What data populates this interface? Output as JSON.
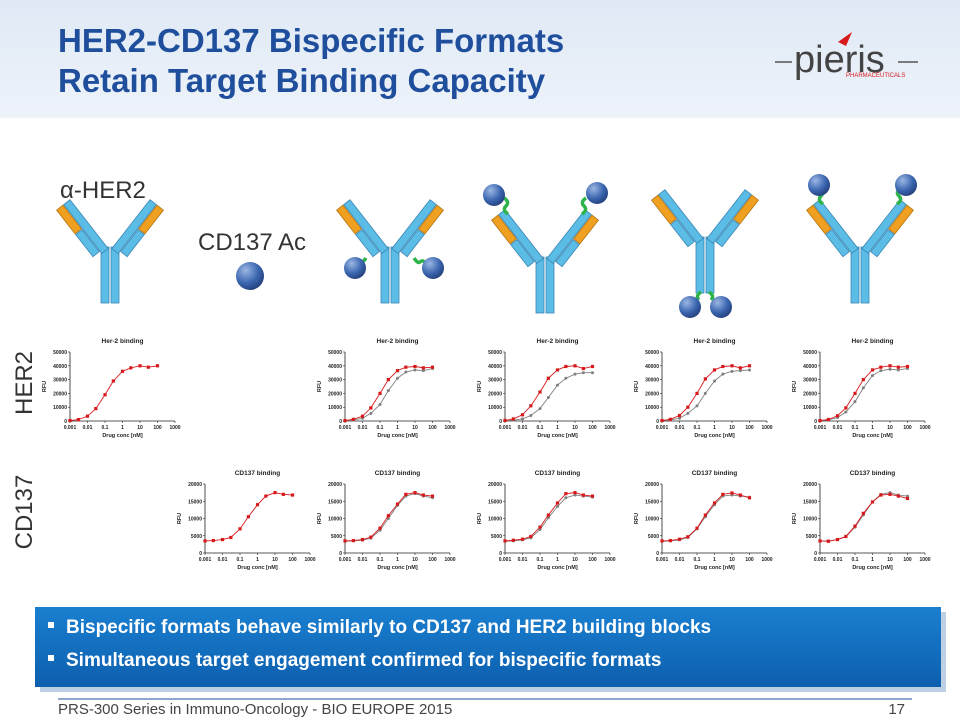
{
  "header": {
    "title_lines": [
      "HER2-CD137 Bispecific Formats",
      "Retain Target Binding Capacity"
    ],
    "logo": {
      "name": "pieris",
      "subtitle": "PHARMACEUTICALS"
    }
  },
  "labels": {
    "antibody": "α-HER2",
    "anticalin": "CD137 Ac",
    "row_her2": "HER2",
    "row_cd137": "CD137"
  },
  "chart_data": [
    {
      "type": "line",
      "title": "Her-2 binding",
      "xlabel": "Drug conc [nM]",
      "ylabel": "RFU",
      "xscale": "log",
      "xlim": [
        0.001,
        1000
      ],
      "xticks": [
        0.001,
        0.01,
        0.1,
        1,
        10,
        100,
        1000
      ],
      "ylim": [
        0,
        50000
      ],
      "yticks": [
        0,
        10000,
        20000,
        30000,
        40000,
        50000
      ],
      "x": [
        0.001,
        0.003,
        0.01,
        0.03,
        0.1,
        0.3,
        1,
        3,
        10,
        30,
        100
      ],
      "series": [
        {
          "color": "#d7191c",
          "values": [
            300,
            1000,
            3500,
            9000,
            19000,
            29000,
            36000,
            38500,
            40000,
            39000,
            40000
          ]
        }
      ]
    },
    {
      "type": "line",
      "title": "Her-2 binding",
      "xlabel": "Drug conc [nM]",
      "ylabel": "RFU",
      "xscale": "log",
      "xlim": [
        0.001,
        1000
      ],
      "xticks": [
        0.001,
        0.01,
        0.1,
        1,
        10,
        100,
        1000
      ],
      "ylim": [
        0,
        50000
      ],
      "yticks": [
        0,
        10000,
        20000,
        30000,
        40000,
        50000
      ],
      "x": [
        0.001,
        0.003,
        0.01,
        0.03,
        0.1,
        0.3,
        1,
        3,
        10,
        30,
        100
      ],
      "series": [
        {
          "color": "#d7191c",
          "values": [
            300,
            1200,
            3500,
            9500,
            20000,
            30000,
            36500,
            39000,
            39500,
            38500,
            39000
          ]
        },
        {
          "color": "#808080",
          "values": [
            200,
            700,
            2000,
            5500,
            12000,
            22000,
            31000,
            35500,
            37000,
            36500,
            38000
          ]
        }
      ]
    },
    {
      "type": "line",
      "title": "Her-2 binding",
      "xlabel": "Drug conc [nM]",
      "ylabel": "RFU",
      "xscale": "log",
      "xlim": [
        0.001,
        1000
      ],
      "xticks": [
        0.001,
        0.01,
        0.1,
        1,
        10,
        100,
        1000
      ],
      "ylim": [
        0,
        50000
      ],
      "yticks": [
        0,
        10000,
        20000,
        30000,
        40000,
        50000
      ],
      "x": [
        0.001,
        0.003,
        0.01,
        0.03,
        0.1,
        0.3,
        1,
        3,
        10,
        30,
        100
      ],
      "series": [
        {
          "color": "#d7191c",
          "values": [
            400,
            1500,
            4500,
            11000,
            21000,
            31000,
            37000,
            39500,
            40000,
            38000,
            39500
          ]
        },
        {
          "color": "#808080",
          "values": [
            200,
            600,
            1500,
            4000,
            9000,
            17000,
            26000,
            31000,
            34000,
            35000,
            35000
          ]
        }
      ]
    },
    {
      "type": "line",
      "title": "Her-2 binding",
      "xlabel": "Drug conc [nM]",
      "ylabel": "RFU",
      "xscale": "log",
      "xlim": [
        0.001,
        1000
      ],
      "xticks": [
        0.001,
        0.01,
        0.1,
        1,
        10,
        100,
        1000
      ],
      "ylim": [
        0,
        50000
      ],
      "yticks": [
        0,
        10000,
        20000,
        30000,
        40000,
        50000
      ],
      "x": [
        0.001,
        0.003,
        0.01,
        0.03,
        0.1,
        0.3,
        1,
        3,
        10,
        30,
        100
      ],
      "series": [
        {
          "color": "#d7191c",
          "values": [
            300,
            1200,
            4000,
            10000,
            20000,
            30500,
            37000,
            39500,
            40000,
            38500,
            40000
          ]
        },
        {
          "color": "#808080",
          "values": [
            300,
            800,
            2000,
            5500,
            11000,
            20000,
            29000,
            34000,
            36000,
            36500,
            37000
          ]
        }
      ]
    },
    {
      "type": "line",
      "title": "Her-2 binding",
      "xlabel": "Drug conc [nM]",
      "ylabel": "RFU",
      "xscale": "log",
      "xlim": [
        0.001,
        1000
      ],
      "xticks": [
        0.001,
        0.01,
        0.1,
        1,
        10,
        100,
        1000
      ],
      "ylim": [
        0,
        50000
      ],
      "yticks": [
        0,
        10000,
        20000,
        30000,
        40000,
        50000
      ],
      "x": [
        0.001,
        0.003,
        0.01,
        0.03,
        0.1,
        0.3,
        1,
        3,
        10,
        30,
        100
      ],
      "series": [
        {
          "color": "#d7191c",
          "values": [
            300,
            1100,
            3800,
            9500,
            20000,
            30000,
            37000,
            39000,
            40000,
            39000,
            39500
          ]
        },
        {
          "color": "#808080",
          "values": [
            200,
            800,
            2500,
            6500,
            14000,
            24000,
            33000,
            36500,
            37500,
            37000,
            38000
          ]
        }
      ]
    },
    {
      "type": "line",
      "title": "CD137 binding",
      "xlabel": "Drug conc [nM]",
      "ylabel": "RFU",
      "xscale": "log",
      "xlim": [
        0.001,
        1000
      ],
      "xticks": [
        0.001,
        0.01,
        0.1,
        1,
        10,
        100,
        1000
      ],
      "ylim": [
        0,
        20000
      ],
      "yticks": [
        0,
        5000,
        10000,
        15000,
        20000
      ],
      "x": [
        0.001,
        0.003,
        0.01,
        0.03,
        0.1,
        0.3,
        1,
        3,
        10,
        30,
        100
      ],
      "series": [
        {
          "color": "#d7191c",
          "values": [
            3500,
            3600,
            3900,
            4500,
            7000,
            10500,
            14000,
            16500,
            17500,
            17000,
            16800
          ]
        }
      ]
    },
    {
      "type": "line",
      "title": "CD137 binding",
      "xlabel": "Drug conc [nM]",
      "ylabel": "RFU",
      "xscale": "log",
      "xlim": [
        0.001,
        1000
      ],
      "xticks": [
        0.001,
        0.01,
        0.1,
        1,
        10,
        100,
        1000
      ],
      "ylim": [
        0,
        20000
      ],
      "yticks": [
        0,
        5000,
        10000,
        15000,
        20000
      ],
      "x": [
        0.001,
        0.003,
        0.01,
        0.03,
        0.1,
        0.3,
        1,
        3,
        10,
        30,
        100
      ],
      "series": [
        {
          "color": "#d7191c",
          "values": [
            3500,
            3600,
            3900,
            4600,
            7200,
            10800,
            14200,
            17000,
            17500,
            16800,
            16500
          ]
        },
        {
          "color": "#808080",
          "values": [
            3400,
            3500,
            3700,
            4300,
            6600,
            10000,
            13800,
            16500,
            17200,
            16500,
            16000
          ]
        }
      ]
    },
    {
      "type": "line",
      "title": "CD137 binding",
      "xlabel": "Drug conc [nM]",
      "ylabel": "RFU",
      "xscale": "log",
      "xlim": [
        0.001,
        1000
      ],
      "xticks": [
        0.001,
        0.01,
        0.1,
        1,
        10,
        100,
        1000
      ],
      "ylim": [
        0,
        20000
      ],
      "yticks": [
        0,
        5000,
        10000,
        15000,
        20000
      ],
      "x": [
        0.001,
        0.003,
        0.01,
        0.03,
        0.1,
        0.3,
        1,
        3,
        10,
        30,
        100
      ],
      "series": [
        {
          "color": "#d7191c",
          "values": [
            3500,
            3700,
            4000,
            4800,
            7500,
            11000,
            14500,
            17200,
            17500,
            16800,
            16500
          ]
        },
        {
          "color": "#808080",
          "values": [
            3400,
            3500,
            3800,
            4400,
            6800,
            10200,
            13500,
            16000,
            16800,
            16500,
            16200
          ]
        }
      ]
    },
    {
      "type": "line",
      "title": "CD137 binding",
      "xlabel": "Drug conc [nM]",
      "ylabel": "RFU",
      "xscale": "log",
      "xlim": [
        0.001,
        1000
      ],
      "xticks": [
        0.001,
        0.01,
        0.1,
        1,
        10,
        100,
        1000
      ],
      "ylim": [
        0,
        20000
      ],
      "yticks": [
        0,
        5000,
        10000,
        15000,
        20000
      ],
      "x": [
        0.001,
        0.003,
        0.01,
        0.03,
        0.1,
        0.3,
        1,
        3,
        10,
        30,
        100
      ],
      "series": [
        {
          "color": "#d7191c",
          "values": [
            3500,
            3600,
            4000,
            4700,
            7200,
            11000,
            14500,
            17000,
            17400,
            16800,
            16000
          ]
        },
        {
          "color": "#808080",
          "values": [
            3400,
            3500,
            3800,
            4500,
            7000,
            10500,
            14000,
            16500,
            16800,
            16500,
            16200
          ]
        }
      ]
    },
    {
      "type": "line",
      "title": "CD137 binding",
      "xlabel": "Drug conc [nM]",
      "ylabel": "RFU",
      "xscale": "log",
      "xlim": [
        0.001,
        1000
      ],
      "xticks": [
        0.001,
        0.01,
        0.1,
        1,
        10,
        100,
        1000
      ],
      "ylim": [
        0,
        20000
      ],
      "yticks": [
        0,
        5000,
        10000,
        15000,
        20000
      ],
      "x": [
        0.001,
        0.003,
        0.01,
        0.03,
        0.1,
        0.3,
        1,
        3,
        10,
        30,
        100
      ],
      "series": [
        {
          "color": "#d7191c",
          "values": [
            3500,
            3400,
            3900,
            4800,
            7800,
            11500,
            14800,
            16800,
            17000,
            16500,
            15800
          ]
        },
        {
          "color": "#808080",
          "values": [
            3500,
            3500,
            3900,
            4700,
            7500,
            11000,
            14800,
            17000,
            17500,
            16800,
            16500
          ]
        }
      ]
    }
  ],
  "bullets": [
    "Bispecific formats behave similarly to CD137 and HER2 building blocks",
    "Simultaneous target engagement confirmed for bispecific formats"
  ],
  "footer": {
    "text": "PRS-300 Series in Immuno-Oncology - BIO EUROPE 2015",
    "page": "17"
  }
}
